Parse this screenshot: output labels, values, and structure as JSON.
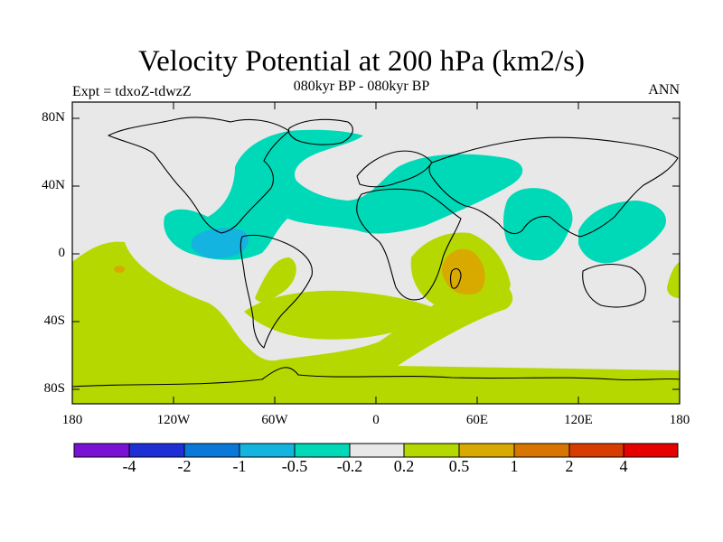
{
  "title": "Velocity Potential at 200 hPa (km2/s)",
  "subtitle": "080kyr BP - 080kyr BP",
  "left_label": "Expt = tdxoZ-tdwzZ",
  "right_label": "ANN",
  "y_ticks": [
    "80N",
    "40N",
    "0",
    "40S",
    "80S"
  ],
  "x_ticks": [
    "180",
    "120W",
    "60W",
    "0",
    "60E",
    "120E",
    "180"
  ],
  "colorbar": {
    "colors": [
      "#7a12d6",
      "#1f2fd6",
      "#0a78d8",
      "#14b4e0",
      "#00d9b8",
      "#e8e8e8",
      "#b5d900",
      "#d8aa00",
      "#d87400",
      "#d83c00",
      "#e60000"
    ],
    "labels": [
      "-4",
      "-2",
      "-1",
      "-0.5",
      "-0.2",
      "0.2",
      "0.5",
      "1",
      "2",
      "4"
    ]
  },
  "colors": {
    "background_field": "#e8e8e8",
    "positive_weak": "#b5d900",
    "positive_mid": "#d8aa00",
    "positive_strong": "#d87400",
    "negative_weak": "#00d9b8",
    "negative_mid": "#14b4e0"
  }
}
